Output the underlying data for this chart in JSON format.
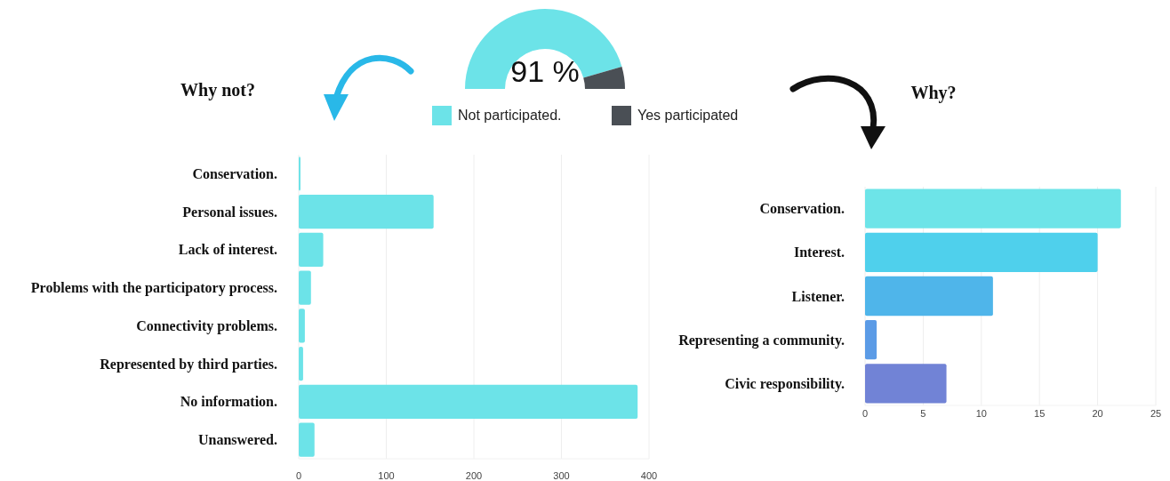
{
  "chart_data": [
    {
      "type": "donut",
      "categories": [
        "Not participated.",
        "Yes participated"
      ],
      "values": [
        91,
        9
      ],
      "colors": [
        "#6ce3e8",
        "#4a4f55"
      ],
      "legend": "bottom",
      "annotations": [
        "91 %"
      ]
    },
    {
      "type": "bar",
      "orientation": "horizontal",
      "title": "Why not?",
      "categories": [
        "Conservation.",
        "Personal issues.",
        "Lack of interest.",
        "Problems with the participatory process.",
        "Connectivity problems.",
        "Represented by third parties.",
        "No information.",
        "Unanswered."
      ],
      "values": [
        2,
        154,
        28,
        14,
        7,
        5,
        387,
        18
      ],
      "color": "#6ce3e8",
      "xlim": [
        0,
        400
      ],
      "xticks": [
        0,
        100,
        200,
        300,
        400
      ],
      "grid": "x"
    },
    {
      "type": "bar",
      "orientation": "horizontal",
      "title": "Why?",
      "categories": [
        "Conservation.",
        "Interest.",
        "Listener.",
        "Representing a community.",
        "Civic responsibility."
      ],
      "values": [
        22,
        20,
        11,
        1,
        7
      ],
      "colors": [
        "#6de4e8",
        "#4fd0ec",
        "#4fb5ea",
        "#5b9be6",
        "#7183d6"
      ],
      "xlim": [
        0,
        25
      ],
      "xticks": [
        0,
        5,
        10,
        15,
        20,
        25
      ],
      "grid": "x"
    }
  ]
}
